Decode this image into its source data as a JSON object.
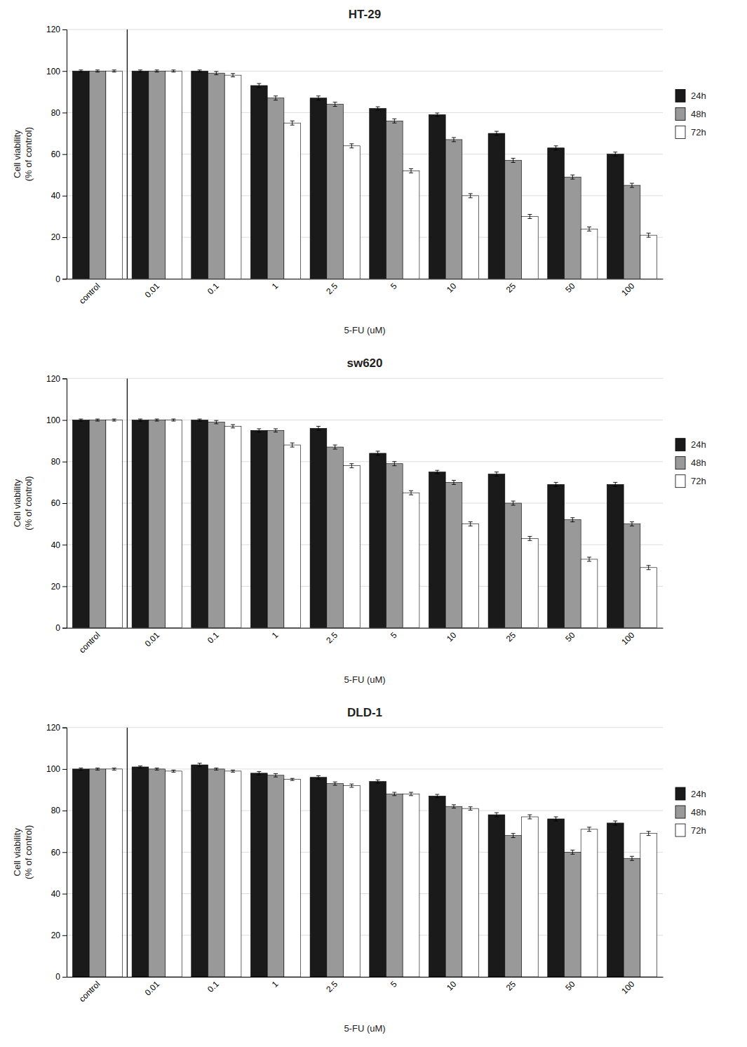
{
  "chart_data": [
    {
      "type": "bar",
      "title": "HT-29",
      "xlabel": "5-FU (uM)",
      "ylabel": "Cell viability\n(% of control)",
      "categories": [
        "control",
        "0.01",
        "0.1",
        "1",
        "2.5",
        "5",
        "10",
        "25",
        "50",
        "100"
      ],
      "series": [
        {
          "name": "24h",
          "color": "#1a1a1a",
          "values": [
            100,
            100,
            100,
            93,
            87,
            82,
            79,
            70,
            63,
            60
          ],
          "errors": [
            0.5,
            0.5,
            0.5,
            1.0,
            1.0,
            0.8,
            0.8,
            1.0,
            1.0,
            1.0
          ]
        },
        {
          "name": "48h",
          "color": "#999999",
          "values": [
            100,
            100,
            99,
            87,
            84,
            76,
            67,
            57,
            49,
            45
          ],
          "errors": [
            0.5,
            0.5,
            0.8,
            1.0,
            1.0,
            1.0,
            1.0,
            1.0,
            1.0,
            1.0
          ]
        },
        {
          "name": "72h",
          "color": "#ffffff",
          "values": [
            100,
            100,
            98,
            75,
            64,
            52,
            40,
            30,
            24,
            21
          ],
          "errors": [
            0.5,
            0.5,
            0.8,
            1.0,
            1.0,
            1.0,
            1.0,
            1.0,
            1.0,
            1.0
          ]
        }
      ],
      "ylim": [
        0,
        120
      ],
      "yticks": [
        0,
        20,
        40,
        60,
        80,
        100,
        120
      ],
      "grid": true,
      "legend": "right"
    },
    {
      "type": "bar",
      "title": "sw620",
      "xlabel": "5-FU (uM)",
      "ylabel": "Cell viability\n(% of control)",
      "categories": [
        "control",
        "0.01",
        "0.1",
        "1",
        "2.5",
        "5",
        "10",
        "25",
        "50",
        "100"
      ],
      "series": [
        {
          "name": "24h",
          "color": "#1a1a1a",
          "values": [
            100,
            100,
            100,
            95,
            96,
            84,
            75,
            74,
            69,
            69
          ],
          "errors": [
            0.5,
            0.5,
            0.5,
            0.8,
            1.0,
            1.0,
            0.8,
            1.0,
            1.0,
            1.0
          ]
        },
        {
          "name": "48h",
          "color": "#999999",
          "values": [
            100,
            100,
            99,
            95,
            87,
            79,
            70,
            60,
            52,
            50
          ],
          "errors": [
            0.5,
            0.5,
            0.8,
            0.8,
            1.0,
            1.0,
            1.0,
            1.0,
            1.0,
            1.0
          ]
        },
        {
          "name": "72h",
          "color": "#ffffff",
          "values": [
            100,
            100,
            97,
            88,
            78,
            65,
            50,
            43,
            33,
            29
          ],
          "errors": [
            0.5,
            0.5,
            0.8,
            1.0,
            1.0,
            1.0,
            1.0,
            1.0,
            1.0,
            1.0
          ]
        }
      ],
      "ylim": [
        0,
        120
      ],
      "yticks": [
        0,
        20,
        40,
        60,
        80,
        100,
        120
      ],
      "grid": true,
      "legend": "right"
    },
    {
      "type": "bar",
      "title": "DLD-1",
      "xlabel": "5-FU (uM)",
      "ylabel": "Cell viability\n(% of control)",
      "categories": [
        "control",
        "0.01",
        "0.1",
        "1",
        "2.5",
        "5",
        "10",
        "25",
        "50",
        "100"
      ],
      "series": [
        {
          "name": "24h",
          "color": "#1a1a1a",
          "values": [
            100,
            101,
            102,
            98,
            96,
            94,
            87,
            78,
            76,
            74
          ],
          "errors": [
            0.5,
            0.5,
            0.8,
            0.8,
            0.8,
            0.8,
            0.8,
            1.0,
            1.0,
            1.0
          ]
        },
        {
          "name": "48h",
          "color": "#999999",
          "values": [
            100,
            100,
            100,
            97,
            93,
            88,
            82,
            68,
            60,
            57
          ],
          "errors": [
            0.5,
            0.5,
            0.5,
            0.8,
            0.8,
            0.8,
            0.8,
            1.0,
            1.0,
            1.0
          ]
        },
        {
          "name": "72h",
          "color": "#ffffff",
          "values": [
            100,
            99,
            99,
            95,
            92,
            88,
            81,
            77,
            71,
            69
          ],
          "errors": [
            0.5,
            0.5,
            0.5,
            0.5,
            0.8,
            0.8,
            0.8,
            1.0,
            1.0,
            1.0
          ]
        }
      ],
      "ylim": [
        0,
        120
      ],
      "yticks": [
        0,
        20,
        40,
        60,
        80,
        100,
        120
      ],
      "grid": true,
      "legend": "right"
    }
  ]
}
